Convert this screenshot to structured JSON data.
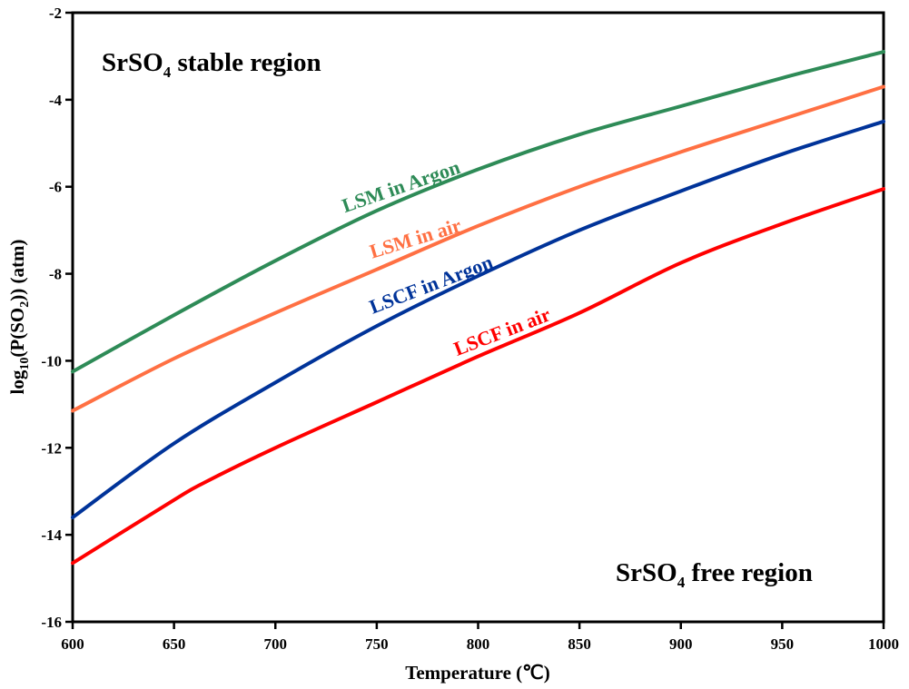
{
  "chart_data": {
    "type": "line",
    "title": "",
    "xlabel": "Temperature (℃)",
    "ylabel_parts": {
      "main": "log",
      "sub1": "10",
      "mid": "(P(SO",
      "sub2": "2",
      "end": ")) (atm)"
    },
    "xlim": [
      600,
      1000
    ],
    "ylim": [
      -16,
      -2
    ],
    "xticks": [
      600,
      650,
      700,
      750,
      800,
      850,
      900,
      950,
      1000
    ],
    "yticks": [
      -2,
      -4,
      -6,
      -8,
      -10,
      -12,
      -14,
      -16
    ],
    "grid": false,
    "legend": "none",
    "annotations": {
      "stable": {
        "prefix": "SrSO",
        "sub": "4",
        "suffix": " stable region"
      },
      "free": {
        "prefix": "SrSO",
        "sub": "4",
        "suffix": " free region"
      }
    },
    "series": [
      {
        "name": "LSM in Argon",
        "color": "#2e8b57",
        "x": [
          600,
          650,
          700,
          750,
          800,
          850,
          900,
          950,
          1000
        ],
        "y": [
          -10.25,
          -8.95,
          -7.7,
          -6.55,
          -5.6,
          -4.8,
          -4.15,
          -3.5,
          -2.9
        ]
      },
      {
        "name": "LSM in air",
        "color": "#ff7043",
        "x": [
          600,
          650,
          700,
          750,
          800,
          850,
          900,
          950,
          1000
        ],
        "y": [
          -11.15,
          -9.95,
          -8.9,
          -7.9,
          -6.9,
          -6.0,
          -5.2,
          -4.45,
          -3.7
        ]
      },
      {
        "name": "LSCF in Argon",
        "color": "#003399",
        "x": [
          600,
          650,
          700,
          750,
          800,
          850,
          900,
          950,
          1000
        ],
        "y": [
          -13.6,
          -11.9,
          -10.5,
          -9.2,
          -8.05,
          -7.0,
          -6.1,
          -5.25,
          -4.5
        ]
      },
      {
        "name": "LSCF in air",
        "color": "#ff0000",
        "x": [
          600,
          650,
          665,
          700,
          750,
          800,
          850,
          900,
          950,
          1000
        ],
        "y": [
          -14.65,
          -13.2,
          -12.8,
          -12.0,
          -10.95,
          -9.9,
          -8.9,
          -7.75,
          -6.85,
          -6.05
        ]
      }
    ]
  }
}
